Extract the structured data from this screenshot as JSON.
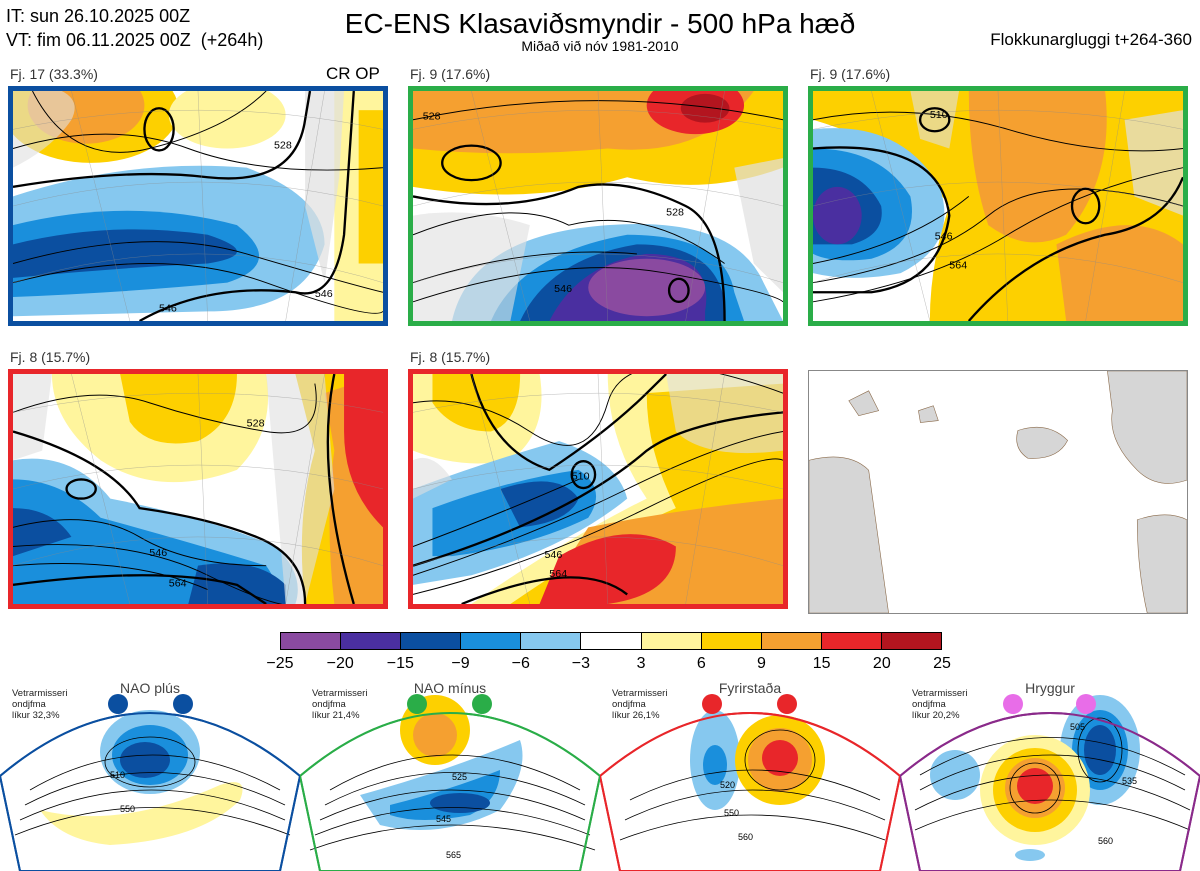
{
  "header": {
    "it_line": "IT: sun 26.10.2025 00Z",
    "vt_line": "VT: fim 06.11.2025 00Z  (+264h)",
    "title": "EC-ENS Klasaviðsmyndir - 500 hPa hæð",
    "subtitle": "Miðað við nóv 1981-2010",
    "window": "Flokkunargluggi t+264-360"
  },
  "panels": [
    {
      "label": "Fj. 17 (33.3%)",
      "border": "#0b4fa0",
      "tag": "CR OP",
      "contours": [
        "528",
        "546",
        "546"
      ]
    },
    {
      "label": "Fj. 9 (17.6%)",
      "border": "#2aad48",
      "contours": [
        "528",
        "546",
        "528"
      ]
    },
    {
      "label": "Fj. 9 (17.6%)",
      "border": "#2aad48",
      "contours": [
        "510",
        "546",
        "564"
      ]
    },
    {
      "label": "Fj. 8 (15.7%)",
      "border": "#e8262a",
      "contours": [
        "528",
        "546",
        "564"
      ]
    },
    {
      "label": "Fj. 8 (15.7%)",
      "border": "#e8262a",
      "contours": [
        "510",
        "546",
        "564"
      ]
    }
  ],
  "colorbar": {
    "colors": [
      "#8a4aa0",
      "#4a2fa0",
      "#0b4fa0",
      "#1a8fdc",
      "#86c8ef",
      "#ffffff",
      "#fff59d",
      "#fdd000",
      "#f5a030",
      "#e8262a",
      "#b3151f"
    ],
    "ticks": [
      "−25",
      "−20",
      "−15",
      "−9",
      "−6",
      "−3",
      "3",
      "6",
      "9",
      "15",
      "20",
      "25"
    ]
  },
  "regimes": [
    {
      "name": "NAO plús",
      "info": [
        "Vetrarmisseri",
        "ondjfma",
        "líkur 32,3%"
      ],
      "color": "#0b4fa0",
      "contours": [
        "510",
        "550"
      ]
    },
    {
      "name": "NAO mínus",
      "info": [
        "Vetrarmisseri",
        "ondjfma",
        "líkur 21,4%"
      ],
      "color": "#2aad48",
      "contours": [
        "525",
        "545",
        "565"
      ]
    },
    {
      "name": "Fyrirstaða",
      "info": [
        "Vetrarmisseri",
        "ondjfma",
        "líkur 26,1%"
      ],
      "color": "#e8262a",
      "contours": [
        "520",
        "550",
        "560"
      ]
    },
    {
      "name": "Hryggur",
      "info": [
        "Vetrarmisseri",
        "ondjfma",
        "líkur 20,2%"
      ],
      "color": "#e86de8",
      "border": "#8a2a8a",
      "contours": [
        "505",
        "535",
        "560"
      ]
    }
  ]
}
